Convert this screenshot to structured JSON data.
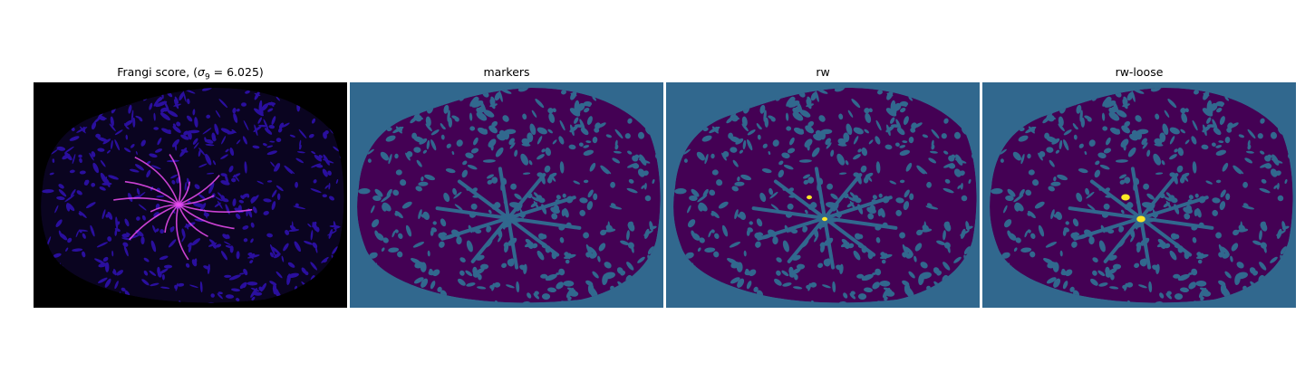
{
  "panels": [
    {
      "id": "frangi",
      "title_prefix": "Frangi score, (",
      "title_sym": "σ",
      "title_sub": "9",
      "title_suffix": " = 6.025)",
      "colormap": "magma",
      "background": "#000000"
    },
    {
      "id": "markers",
      "title": "markers",
      "colormap": "viridis",
      "background": "#31688e"
    },
    {
      "id": "rw",
      "title": "rw",
      "colormap": "viridis",
      "background": "#31688e"
    },
    {
      "id": "rw-loose",
      "title": "rw-loose",
      "colormap": "viridis",
      "background": "#31688e"
    }
  ],
  "colors": {
    "viridis_dark": "#440154",
    "viridis_mid": "#31688e",
    "viridis_yellow": "#fde725",
    "magma_low": "#2a0f9e",
    "magma_high": "#ec4cf2"
  }
}
